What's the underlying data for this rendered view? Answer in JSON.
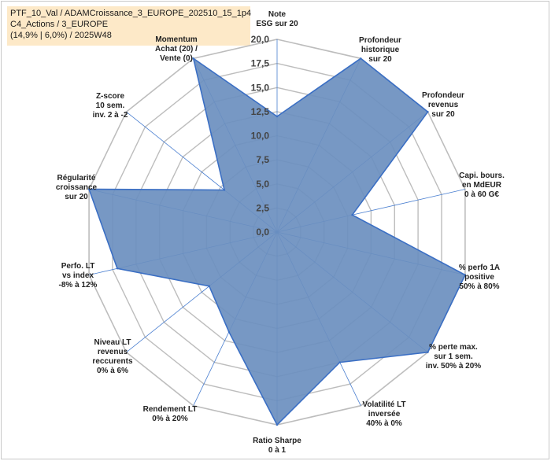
{
  "header": {
    "line1": "PTF_10_Val / ADAMCroissance_3_EUROPE_202510_15_1p4",
    "line2": "C4_Actions / 3_EUROPE",
    "line3": "(14,9% | 6,0%) / 2025W48"
  },
  "colors": {
    "fill": "#6b8fbf",
    "stroke": "#3b6fc4",
    "grid": "#bdbdbd",
    "spoke": "#4a7fd0",
    "info_bg": "#fde9c8",
    "highlight_label_bg": "#fde9c8"
  },
  "chart_data": {
    "type": "radar",
    "rmin": 0,
    "rmax": 20,
    "ticks": [
      "0,0",
      "2,5",
      "5,0",
      "7,5",
      "10,0",
      "12,5",
      "15,0",
      "17,5",
      "20,0"
    ],
    "axes": [
      {
        "label": [
          "Note",
          "ESG sur 20"
        ],
        "value": 12.0
      },
      {
        "label": [
          "Profondeur",
          "historique",
          "sur 20"
        ],
        "value": 20.0
      },
      {
        "label": [
          "Profondeur",
          "revenus",
          "sur 20"
        ],
        "value": 20.0
      },
      {
        "label": [
          "Capi. bours.",
          "en MdEUR",
          "0 à 60 G€"
        ],
        "value": 8.0
      },
      {
        "label": [
          "% perfo 1A",
          "positive",
          "50% à 80%"
        ],
        "value": 20.0
      },
      {
        "label": [
          "% perte max.",
          "sur 1 sem.",
          "inv. 50% à 20%"
        ],
        "value": 20.0
      },
      {
        "label": [
          "Volatilité LT",
          "inversée",
          "40% à 0%"
        ],
        "value": 15.0
      },
      {
        "label": [
          "Ratio Sharpe",
          "0 à 1"
        ],
        "value": 20.0
      },
      {
        "label": [
          "Rendement LT",
          "0% à 20%"
        ],
        "value": 11.5
      },
      {
        "label": [
          "Niveau LT",
          "revenus",
          "reccurents",
          "0% à 6%"
        ],
        "value": 9.0
      },
      {
        "label": [
          "Perfo. LT",
          "vs index",
          "-8% à 12%"
        ],
        "value": 17.0
      },
      {
        "label": [
          "Régularité",
          "croissance",
          "sur 20"
        ],
        "value": 20.0
      },
      {
        "label": [
          "Z-score",
          "10 sem.",
          "inv. 2 à -2"
        ],
        "value": 7.0
      },
      {
        "label": [
          "Momentum",
          "Achat (20) /",
          "Vente (0)"
        ],
        "value": 20.0
      }
    ]
  }
}
